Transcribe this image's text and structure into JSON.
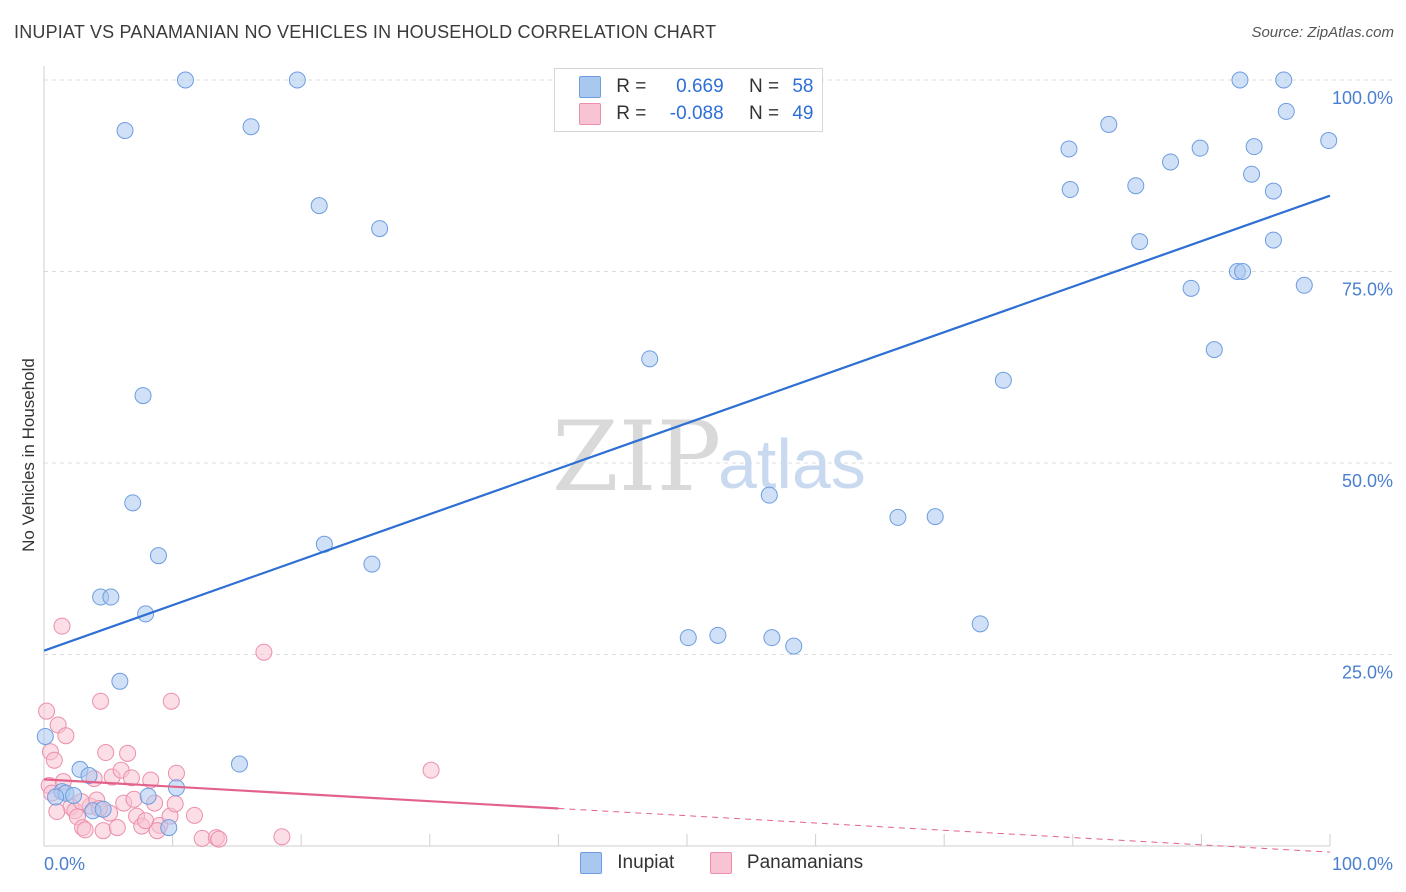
{
  "header": {
    "title": "INUPIAT VS PANAMANIAN NO VEHICLES IN HOUSEHOLD CORRELATION CHART",
    "source": "Source: ZipAtlas.com"
  },
  "watermark": {
    "zip": "ZIP",
    "atlas": "atlas"
  },
  "legend": {
    "rows": [
      {
        "r_label": "R =",
        "r_value": "0.669",
        "n_label": "N =",
        "n_value": "58",
        "color": "#a9c8f0",
        "border": "#6d9de0"
      },
      {
        "r_label": "R =",
        "r_value": "-0.088",
        "n_label": "N =",
        "n_value": "49",
        "color": "#f8c3d2",
        "border": "#ec8fab"
      }
    ]
  },
  "bottom_legend": {
    "items": [
      {
        "label": "Inupiat",
        "color": "#a9c8f0",
        "border": "#6d9de0"
      },
      {
        "label": "Panamanians",
        "color": "#f8c3d2",
        "border": "#ec8fab"
      }
    ]
  },
  "chart_data": {
    "type": "scatter",
    "title": "INUPIAT VS PANAMANIAN NO VEHICLES IN HOUSEHOLD CORRELATION CHART",
    "xlabel": "",
    "ylabel": "No Vehicles in Household",
    "xlim": [
      0,
      100
    ],
    "ylim": [
      0,
      100
    ],
    "x_tick_labels": [
      {
        "value": 0,
        "label": "0.0%"
      },
      {
        "value": 100,
        "label": "100.0%"
      }
    ],
    "y_tick_labels": [
      {
        "value": 25,
        "label": "25.0%"
      },
      {
        "value": 50,
        "label": "50.0%"
      },
      {
        "value": 75,
        "label": "75.0%"
      },
      {
        "value": 100,
        "label": "100.0%"
      }
    ],
    "grid": true,
    "series": [
      {
        "name": "Inupiat",
        "color": "#a9c8f0",
        "border": "#6d9de0",
        "trend": {
          "x": [
            0,
            100
          ],
          "y": [
            25.5,
            84.9
          ],
          "color": "#2d6fd2"
        },
        "points": [
          [
            11.0,
            100.0
          ],
          [
            19.7,
            100.0
          ],
          [
            6.3,
            93.4
          ],
          [
            16.1,
            93.9
          ],
          [
            21.4,
            83.6
          ],
          [
            26.1,
            80.6
          ],
          [
            7.7,
            58.8
          ],
          [
            47.1,
            63.6
          ],
          [
            6.9,
            44.8
          ],
          [
            8.9,
            37.9
          ],
          [
            21.8,
            39.4
          ],
          [
            25.5,
            36.8
          ],
          [
            4.4,
            32.5
          ],
          [
            5.2,
            32.5
          ],
          [
            7.9,
            30.3
          ],
          [
            5.9,
            21.5
          ],
          [
            15.2,
            10.7
          ],
          [
            2.8,
            10.0
          ],
          [
            3.5,
            9.2
          ],
          [
            1.4,
            7.1
          ],
          [
            1.7,
            6.9
          ],
          [
            2.3,
            6.6
          ],
          [
            0.9,
            6.4
          ],
          [
            8.1,
            6.5
          ],
          [
            10.3,
            7.6
          ],
          [
            3.8,
            4.6
          ],
          [
            4.6,
            4.8
          ],
          [
            9.7,
            2.4
          ],
          [
            0.1,
            14.3
          ],
          [
            50.1,
            27.2
          ],
          [
            52.4,
            27.5
          ],
          [
            56.6,
            27.2
          ],
          [
            58.3,
            26.1
          ],
          [
            56.4,
            45.8
          ],
          [
            66.4,
            42.9
          ],
          [
            69.3,
            43.0
          ],
          [
            74.6,
            60.8
          ],
          [
            72.8,
            29.0
          ],
          [
            79.7,
            91.0
          ],
          [
            79.8,
            85.7
          ],
          [
            82.8,
            94.2
          ],
          [
            84.9,
            86.2
          ],
          [
            85.2,
            78.9
          ],
          [
            87.6,
            89.3
          ],
          [
            89.2,
            72.8
          ],
          [
            89.9,
            91.1
          ],
          [
            91.0,
            64.8
          ],
          [
            92.8,
            75.0
          ],
          [
            93.2,
            75.0
          ],
          [
            93.9,
            87.7
          ],
          [
            94.1,
            91.3
          ],
          [
            95.6,
            85.5
          ],
          [
            95.6,
            79.1
          ],
          [
            96.6,
            95.9
          ],
          [
            98.0,
            73.2
          ],
          [
            99.9,
            92.1
          ],
          [
            93.0,
            100.0
          ],
          [
            96.4,
            100.0
          ]
        ]
      },
      {
        "name": "Panamanians",
        "color": "#f8c3d2",
        "border": "#ec8fab",
        "trend": {
          "x": [
            0,
            40
          ],
          "y": [
            8.7,
            4.9
          ],
          "dash_to_x": 100,
          "dash_to_y": -0.8,
          "color": "#e3628c"
        },
        "points": [
          [
            0.2,
            17.6
          ],
          [
            1.4,
            28.7
          ],
          [
            1.1,
            15.8
          ],
          [
            0.5,
            12.3
          ],
          [
            0.8,
            11.2
          ],
          [
            1.7,
            14.4
          ],
          [
            0.4,
            7.9
          ],
          [
            0.6,
            6.9
          ],
          [
            1.5,
            8.4
          ],
          [
            2.1,
            5.1
          ],
          [
            2.4,
            4.6
          ],
          [
            2.6,
            3.8
          ],
          [
            3.0,
            2.4
          ],
          [
            3.2,
            2.1
          ],
          [
            3.6,
            5.2
          ],
          [
            3.9,
            8.8
          ],
          [
            4.1,
            6.0
          ],
          [
            4.4,
            18.9
          ],
          [
            4.6,
            2.0
          ],
          [
            4.8,
            12.2
          ],
          [
            5.1,
            4.3
          ],
          [
            5.3,
            9.0
          ],
          [
            5.7,
            2.4
          ],
          [
            6.0,
            9.9
          ],
          [
            6.2,
            5.6
          ],
          [
            6.5,
            12.1
          ],
          [
            6.8,
            8.9
          ],
          [
            7.2,
            3.9
          ],
          [
            7.6,
            2.6
          ],
          [
            7.9,
            3.3
          ],
          [
            8.3,
            8.6
          ],
          [
            8.6,
            5.6
          ],
          [
            9.0,
            2.7
          ],
          [
            9.8,
            3.9
          ],
          [
            9.9,
            18.9
          ],
          [
            10.2,
            5.5
          ],
          [
            10.3,
            9.5
          ],
          [
            11.7,
            4.0
          ],
          [
            12.3,
            1.0
          ],
          [
            13.4,
            1.1
          ],
          [
            13.6,
            0.9
          ],
          [
            17.1,
            25.3
          ],
          [
            18.5,
            1.2
          ],
          [
            30.1,
            9.9
          ],
          [
            1.0,
            4.5
          ],
          [
            2.9,
            5.8
          ],
          [
            4.3,
            4.9
          ],
          [
            7.0,
            6.1
          ],
          [
            8.8,
            2.0
          ]
        ]
      }
    ]
  }
}
